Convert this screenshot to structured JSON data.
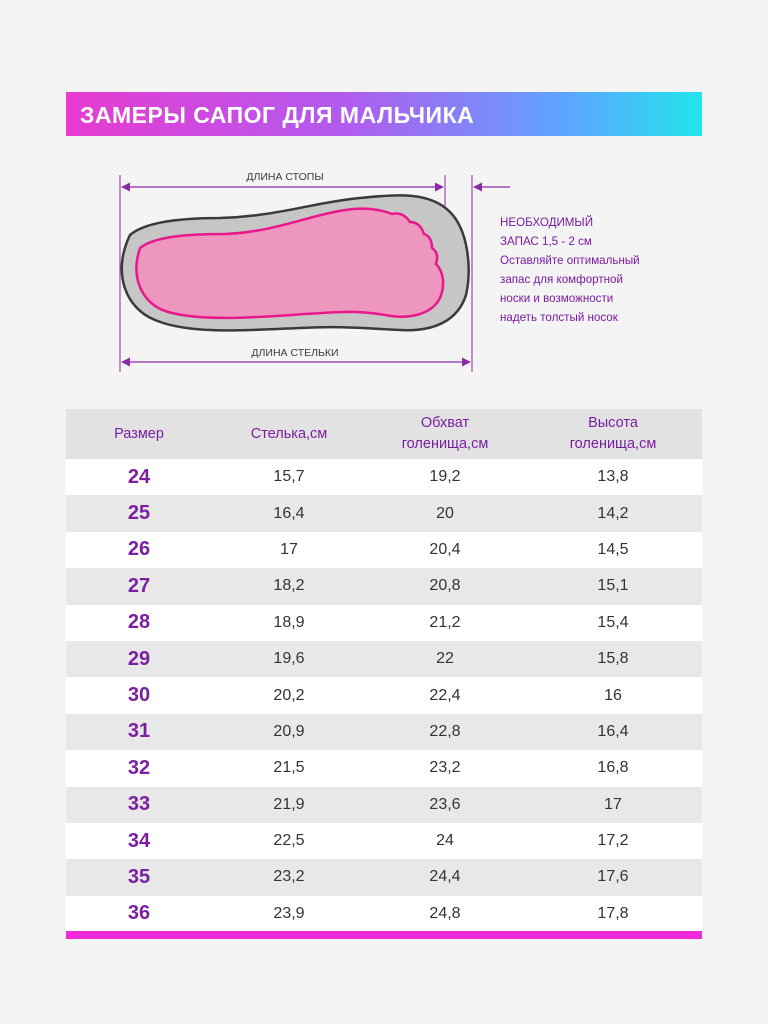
{
  "title": "ЗАМЕРЫ САПОГ ДЛЯ МАЛЬЧИКА",
  "diagram": {
    "foot_length_label": "ДЛИНА СТОПЫ",
    "insole_length_label": "ДЛИНА СТЕЛЬКИ"
  },
  "note": {
    "lines": [
      "НЕОБХОДИМЫЙ",
      "ЗАПАС 1,5 - 2 см",
      "Оставляйте оптимальный",
      "запас для комфортной",
      "носки и возможности",
      "надеть толстый носок"
    ]
  },
  "table": {
    "headers": [
      {
        "line1": "Размер",
        "line2": ""
      },
      {
        "line1": "Стелька,см",
        "line2": ""
      },
      {
        "line1": "Обхват",
        "line2": "голенища,см"
      },
      {
        "line1": "Высота",
        "line2": "голенища,см"
      }
    ],
    "rows": [
      [
        "24",
        "15,7",
        "19,2",
        "13,8"
      ],
      [
        "25",
        "16,4",
        "20",
        "14,2"
      ],
      [
        "26",
        "17",
        "20,4",
        "14,5"
      ],
      [
        "27",
        "18,2",
        "20,8",
        "15,1"
      ],
      [
        "28",
        "18,9",
        "21,2",
        "15,4"
      ],
      [
        "29",
        "19,6",
        "22",
        "15,8"
      ],
      [
        "30",
        "20,2",
        "22,4",
        "16"
      ],
      [
        "31",
        "20,9",
        "22,8",
        "16,4"
      ],
      [
        "32",
        "21,5",
        "23,2",
        "16,8"
      ],
      [
        "33",
        "21,9",
        "23,6",
        "17"
      ],
      [
        "34",
        "22,5",
        "24",
        "17,2"
      ],
      [
        "35",
        "23,2",
        "24,4",
        "17,6"
      ],
      [
        "36",
        "23,9",
        "24,8",
        "17,8"
      ]
    ]
  },
  "colors": {
    "accent_purple": "#7b1fa2",
    "accent_pink": "#f02ad8",
    "foot_pink": "#ee97be",
    "insole_gray": "#c6c6c6"
  }
}
